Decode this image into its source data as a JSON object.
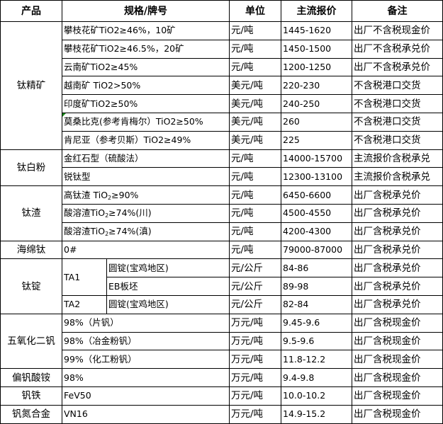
{
  "headers": [
    "产品",
    "规格/牌号",
    "单位",
    "主流报价",
    "备注"
  ],
  "groups": {
    "titanium_concentrate": {
      "product": "钛精矿",
      "rows": [
        {
          "spec": "攀枝花矿TiO2≥46%，10矿",
          "unit": "元/吨",
          "price": "1445-1620",
          "note": "出厂不含税现金价"
        },
        {
          "spec": "攀枝花矿TiO2≥46.5%，20矿",
          "unit": "元/吨",
          "price": "1450-1500",
          "note": "出厂不含税承兑价"
        },
        {
          "spec": "云南矿TiO2≥45%",
          "unit": "元/吨",
          "price": "1200-1250",
          "note": "出厂不含税承兑价"
        },
        {
          "spec": "越南矿 TiO2>50%",
          "unit": "美元/吨",
          "price": "220-230",
          "note": "不含税港口交货"
        },
        {
          "spec": "印度矿TiO2≥50%",
          "unit": "美元/吨",
          "price": "240-250",
          "note": "不含税港口交货"
        },
        {
          "spec": "莫桑比克(参考肯梅尔）TiO2≥50%",
          "unit": "美元/吨",
          "price": "260",
          "note": "不含税港口交货"
        },
        {
          "spec": "肯尼亚（参考贝斯）TiO2≥49%",
          "unit": "美元/吨",
          "price": "225",
          "note": "不含税港口交货"
        }
      ]
    },
    "titanium_dioxide": {
      "product": "钛白粉",
      "rows": [
        {
          "spec": "金红石型（硫酸法）",
          "unit": "元/吨",
          "price": "14000-15700",
          "note": "主流报价含税承兑"
        },
        {
          "spec": "锐钛型",
          "unit": "元/吨",
          "price": "12300-13100",
          "note": "主流报价含税承兑"
        }
      ]
    },
    "titanium_slag": {
      "product": "钛渣",
      "rows": [
        {
          "spec_pre": "高钛渣 TiO",
          "spec_sub": "2",
          "spec_post": "≥90%",
          "unit": "元/吨",
          "price": "6450-6600",
          "note": "出厂含税承兑价"
        },
        {
          "spec_pre": "酸溶渣TiO",
          "spec_sub": "2",
          "spec_post": "≥74%(川)",
          "unit": "元/吨",
          "price": "4500-4550",
          "note": "出厂含税承兑价"
        },
        {
          "spec_pre": "酸溶渣TiO",
          "spec_sub": "2",
          "spec_post": "≥74%(滇)",
          "unit": "元/吨",
          "price": "4200-4300",
          "note": "出厂含税承兑价"
        }
      ]
    },
    "sponge_titanium": {
      "product": "海绵钛",
      "rows": [
        {
          "spec": "0#",
          "unit": "元/吨",
          "price": "79000-87000",
          "note": "出厂含税承兑价"
        }
      ]
    },
    "titanium_ingot": {
      "product": "钛锭",
      "grade1": "TA1",
      "grade2": "TA2",
      "rows": [
        {
          "spec": "圆锭(宝鸡地区)",
          "unit": "元/公斤",
          "price": "84-86",
          "note": "出厂含税承兑价"
        },
        {
          "spec": "EB板坯",
          "unit": "元/公斤",
          "price": "89-98",
          "note": "出厂含税承兑价"
        },
        {
          "spec": "圆锭(宝鸡地区)",
          "unit": "元/公斤",
          "price": "82-84",
          "note": "出厂含税承兑价"
        }
      ]
    },
    "vanadium_pentoxide": {
      "product": "五氧化二钒",
      "rows": [
        {
          "spec": "98%（片钒）",
          "unit": "万元/吨",
          "price": "9.45-9.6",
          "note": "出厂含税现金价"
        },
        {
          "spec": "98%（冶金粉钒）",
          "unit": "万元/吨",
          "price": "9.5-9.6",
          "note": "出厂含税现金价"
        },
        {
          "spec": "99%（化工粉钒）",
          "unit": "万元/吨",
          "price": "11.8-12.2",
          "note": "出厂含税现金价"
        }
      ]
    },
    "ammonium_metavanadate": {
      "product": "偏钒酸铵",
      "rows": [
        {
          "spec": "98%",
          "unit": "万元/吨",
          "price": "9.4-9.8",
          "note": "出厂含税现金价"
        }
      ]
    },
    "ferrovanadium": {
      "product": "钒铁",
      "rows": [
        {
          "spec": "FeV50",
          "unit": "万元/吨",
          "price": "10.0-10.2",
          "note": "出厂含税现金价"
        }
      ]
    },
    "vanadium_nitrogen": {
      "product": "钒氮合金",
      "rows": [
        {
          "spec": "VN16",
          "unit": "万元/吨",
          "price": "14.9-15.2",
          "note": "出厂含税现金价"
        }
      ]
    }
  },
  "colors": {
    "comment_flag": "#1a8a1a",
    "border": "#000000"
  }
}
